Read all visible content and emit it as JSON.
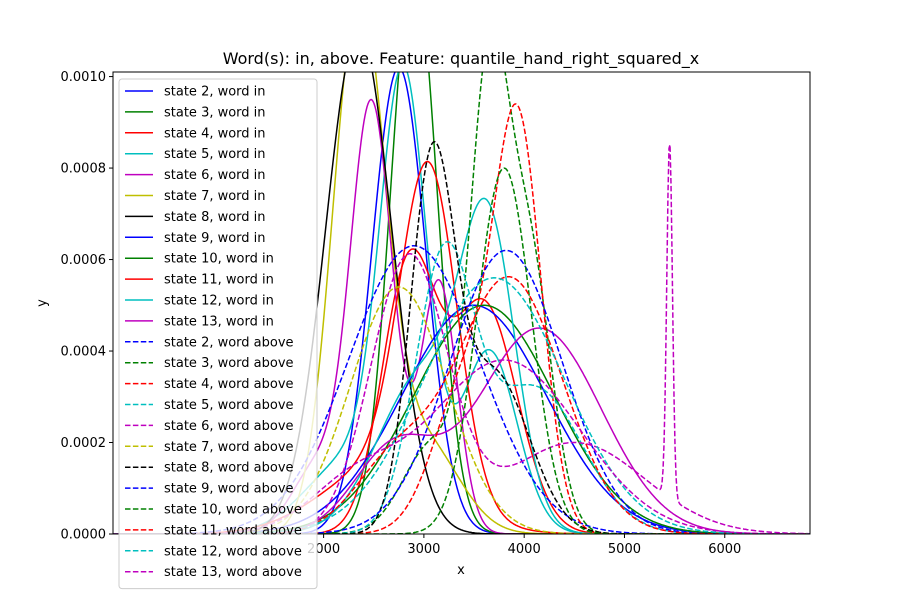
{
  "chart_data": {
    "type": "line",
    "title": "Word(s): in, above. Feature: quantile_hand_right_squared_x",
    "xlabel": "x",
    "ylabel": "y",
    "xlim": [
      -100,
      6850
    ],
    "ylim": [
      0,
      0.00101
    ],
    "xticks": [
      2000,
      3000,
      4000,
      5000,
      6000
    ],
    "yticks": [
      0,
      0.0002,
      0.0004,
      0.0006,
      0.0008,
      0.001
    ],
    "ytick_labels": [
      "0.0000",
      "0.0002",
      "0.0004",
      "0.0006",
      "0.0008",
      "0.0010"
    ],
    "legend_position": "upper-left",
    "series": [
      {
        "name": "state 2, word in",
        "color": "#0000ff",
        "dash": "solid",
        "components": [
          [
            0.00102,
            2750,
            270
          ]
        ]
      },
      {
        "name": "state 3, word in",
        "color": "#008000",
        "dash": "solid",
        "components": [
          [
            0.00125,
            2900,
            230
          ]
        ]
      },
      {
        "name": "state 4, word in",
        "color": "#ff0000",
        "dash": "solid",
        "components": [
          [
            0.00058,
            2850,
            270
          ],
          [
            0.0005,
            3600,
            330
          ]
        ]
      },
      {
        "name": "state 5, word in",
        "color": "#00bfbf",
        "dash": "solid",
        "components": [
          [
            0.00093,
            2800,
            230
          ],
          [
            0.0004,
            3650,
            280
          ],
          [
            0.00017,
            2300,
            450
          ]
        ]
      },
      {
        "name": "state 6, word in",
        "color": "#bf00bf",
        "dash": "solid",
        "components": [
          [
            0.00093,
            2480,
            210
          ],
          [
            0.00015,
            1950,
            260
          ],
          [
            0.00055,
            3150,
            180
          ]
        ]
      },
      {
        "name": "state 7, word in",
        "color": "#bfbf00",
        "dash": "solid",
        "components": [
          [
            0.00115,
            2350,
            260
          ],
          [
            0.0002,
            3000,
            350
          ]
        ]
      },
      {
        "name": "state 8, word in",
        "color": "#000000",
        "dash": "solid",
        "components": [
          [
            0.0011,
            2350,
            330
          ]
        ]
      },
      {
        "name": "state 9, word in",
        "color": "#0000ff",
        "dash": "solid",
        "components": [
          [
            0.0005,
            3500,
            720
          ]
        ]
      },
      {
        "name": "state 10, word in",
        "color": "#008000",
        "dash": "solid",
        "components": [
          [
            0.0005,
            3600,
            700
          ]
        ]
      },
      {
        "name": "state 11, word in",
        "color": "#ff0000",
        "dash": "solid",
        "components": [
          [
            0.0007,
            3050,
            280
          ],
          [
            0.00015,
            2600,
            600
          ]
        ]
      },
      {
        "name": "state 12, word in",
        "color": "#00bfbf",
        "dash": "solid",
        "components": [
          [
            0.0006,
            3650,
            270
          ],
          [
            0.00035,
            3000,
            450
          ]
        ]
      },
      {
        "name": "state 13, word in",
        "color": "#bf00bf",
        "dash": "solid",
        "components": [
          [
            0.00045,
            4150,
            620
          ],
          [
            0.00018,
            2700,
            400
          ]
        ]
      },
      {
        "name": "state 2, word above",
        "color": "#0000ff",
        "dash": "dashed",
        "components": [
          [
            0.00063,
            2900,
            650
          ]
        ]
      },
      {
        "name": "state 3, word above",
        "color": "#008000",
        "dash": "dashed",
        "components": [
          [
            0.00095,
            3650,
            190
          ],
          [
            0.0006,
            4050,
            220
          ],
          [
            0.0002,
            3100,
            300
          ]
        ]
      },
      {
        "name": "state 4, word above",
        "color": "#ff0000",
        "dash": "dashed",
        "components": [
          [
            0.00082,
            3950,
            230
          ],
          [
            0.00035,
            3450,
            330
          ]
        ]
      },
      {
        "name": "state 5, word above",
        "color": "#00bfbf",
        "dash": "dashed",
        "components": [
          [
            0.00058,
            3200,
            290
          ],
          [
            0.00032,
            4100,
            480
          ]
        ]
      },
      {
        "name": "state 6, word above",
        "color": "#bf00bf",
        "dash": "dashed",
        "components": [
          [
            0.00078,
            5450,
            28
          ],
          [
            0.0006,
            2850,
            380
          ],
          [
            0.0002,
            4500,
            700
          ]
        ]
      },
      {
        "name": "state 7, word above",
        "color": "#bfbf00",
        "dash": "dashed",
        "components": [
          [
            0.00054,
            2750,
            480
          ]
        ]
      },
      {
        "name": "state 8, word above",
        "color": "#000000",
        "dash": "dashed",
        "components": [
          [
            0.00078,
            3080,
            220
          ],
          [
            0.00035,
            3700,
            350
          ]
        ]
      },
      {
        "name": "state 9, word above",
        "color": "#0000ff",
        "dash": "dashed",
        "components": [
          [
            0.00062,
            3820,
            560
          ]
        ]
      },
      {
        "name": "state 10, word above",
        "color": "#008000",
        "dash": "dashed",
        "components": [
          [
            0.0008,
            3800,
            270
          ]
        ]
      },
      {
        "name": "state 11, word above",
        "color": "#ff0000",
        "dash": "dashed",
        "components": [
          [
            0.00056,
            3850,
            530
          ],
          [
            0.00015,
            2700,
            400
          ]
        ]
      },
      {
        "name": "state 12, word above",
        "color": "#00bfbf",
        "dash": "dashed",
        "components": [
          [
            0.00056,
            3700,
            700
          ]
        ]
      },
      {
        "name": "state 13, word above",
        "color": "#bf00bf",
        "dash": "dashed",
        "components": [
          [
            0.00038,
            3800,
            750
          ],
          [
            0.0001,
            2300,
            450
          ]
        ]
      }
    ]
  }
}
